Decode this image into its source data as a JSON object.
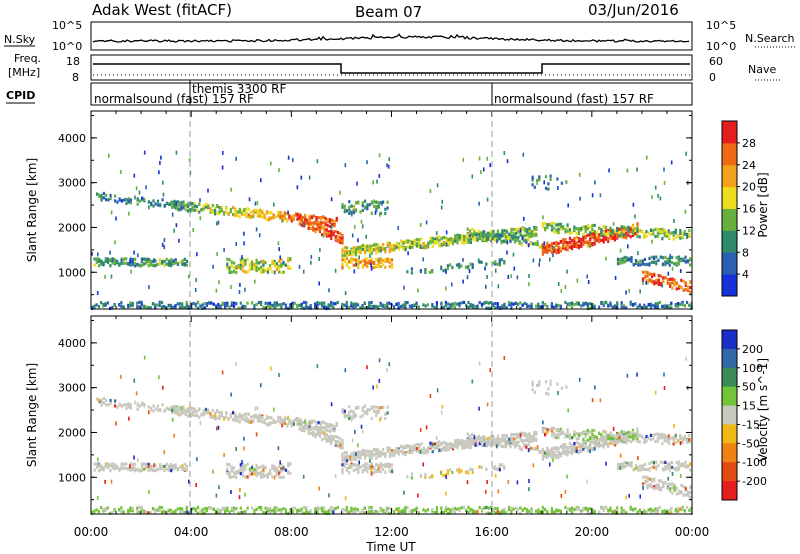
{
  "header": {
    "station": "Adak West (fitACF)",
    "beam": "Beam 07",
    "date": "03/Jun/2016"
  },
  "panels": {
    "nsky": {
      "left_label": "N.Sky",
      "right_label": "N.Search",
      "top_tick": "10^5",
      "bottom_tick": "10^0"
    },
    "freq": {
      "left_label_1": "Freq.",
      "left_label_2": "[MHz]",
      "left_ticks": [
        "18",
        "8"
      ],
      "right_label": "Nave",
      "right_ticks": [
        "60",
        "0"
      ]
    },
    "cpid": {
      "label": "CPID",
      "segments": [
        {
          "text": "normalsound (fast) 157 RF",
          "start_hour": 0
        },
        {
          "text": "themis 3300 RF",
          "start_hour": 4
        },
        {
          "text": "normalsound (fast) 157 RF",
          "start_hour": 16
        }
      ]
    }
  },
  "chart_data": [
    {
      "type": "heatmap",
      "name": "power",
      "ylabel": "Slant Range [km]",
      "y_ticks": [
        "1000",
        "2000",
        "3000",
        "4000"
      ],
      "colorbar": {
        "label": "Power [dB]",
        "ticks": [
          "4",
          "8",
          "12",
          "16",
          "20",
          "24",
          "28"
        ],
        "colors": [
          "#1432d8",
          "#2a5fb4",
          "#2e8a6a",
          "#66b040",
          "#f0dc1e",
          "#f2a21a",
          "#ee6a14",
          "#e41e1e"
        ]
      },
      "ylim": [
        180,
        4600
      ],
      "xlim": [
        0,
        24
      ]
    },
    {
      "type": "heatmap",
      "name": "velocity",
      "ylabel": "Slant Range [km]",
      "y_ticks": [
        "1000",
        "2000",
        "3000",
        "4000"
      ],
      "colorbar": {
        "label": "Velocity [m s^-1]",
        "ticks": [
          "200",
          "100",
          "50",
          "15",
          "-15",
          "-50",
          "-100",
          "-200"
        ],
        "colors": [
          "#1a2ec8",
          "#2f6aa6",
          "#3a8c56",
          "#74c43a",
          "#c8c8be",
          "#f0b814",
          "#f08214",
          "#e44a14",
          "#e41e1e"
        ]
      },
      "ylim": [
        180,
        4600
      ],
      "xlim": [
        0,
        24
      ]
    }
  ],
  "xaxis": {
    "label": "Time UT",
    "ticks": [
      "00:00",
      "04:00",
      "08:00",
      "12:00",
      "16:00",
      "20:00",
      "00:00"
    ]
  }
}
